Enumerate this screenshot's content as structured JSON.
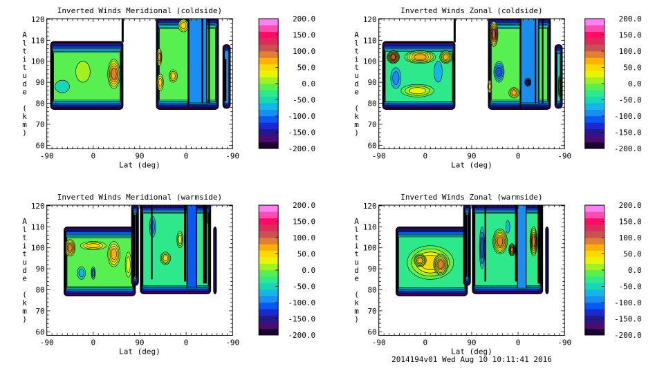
{
  "footer": "2014194v01 Wed Aug 10 10:11:41 2016",
  "axes": {
    "xlabel": "Lat (deg)",
    "ylabel": "Altitude (km)",
    "xticks": [
      "-90",
      "0",
      "90",
      "0",
      "-90"
    ],
    "yticks": [
      "60",
      "70",
      "80",
      "90",
      "100",
      "110",
      "120"
    ],
    "colorbar_labels": [
      "200.0",
      "150.0",
      "100.0",
      "50.0",
      "0.0",
      "-50.0",
      "-100.0",
      "-150.0",
      "-200.0"
    ]
  },
  "colors": {
    "scale": [
      "#1c0030",
      "#4a0c70",
      "#24188c",
      "#1a2ad0",
      "#0a58f2",
      "#1a8ef0",
      "#12b6e8",
      "#18d6b8",
      "#2ee88c",
      "#58f050",
      "#a2f022",
      "#e8f400",
      "#ffd800",
      "#ffb000",
      "#e07e32",
      "#c85252",
      "#dc2c5c",
      "#ff0c64",
      "#ff4cb0",
      "#ff80f0"
    ],
    "line": "#000000"
  },
  "chart_data": [
    {
      "type": "contour",
      "title": "Inverted Winds Meridional (coldside)",
      "xlabel": "Lat (deg)",
      "ylabel": "Altitude (km)",
      "ylim": [
        60,
        120
      ],
      "zlim": [
        -200,
        200
      ],
      "zstep": 20,
      "segments": [
        {
          "x": [
            7,
            148
          ],
          "alt": [
            77,
            109.5
          ],
          "base": -20,
          "blobs": [
            {
              "x": 130,
              "alt": 94,
              "rx": 12,
              "ry": 7,
              "level": 80
            },
            {
              "x": 70,
              "alt": 95,
              "rx": 14,
              "ry": 5,
              "level": 0
            },
            {
              "x": 30,
              "alt": 88,
              "rx": 14,
              "ry": 3,
              "level": -40
            }
          ],
          "bars": [
            [
              8,
              12,
              82,
              105
            ]
          ]
        },
        {
          "x": [
            212,
            333
          ],
          "alt": [
            77,
            121
          ],
          "base": -20,
          "strips": [
            {
              "x": [
                274,
                311
              ],
              "alt": [
                79,
                121
              ],
              "level": -80
            }
          ],
          "blobs": [
            {
              "x": 218,
              "alt": 102,
              "rx": 5,
              "ry": 4,
              "level": 60
            },
            {
              "x": 245,
              "alt": 93,
              "rx": 8,
              "ry": 3,
              "level": 40
            },
            {
              "x": 265,
              "alt": 117,
              "rx": 10,
              "ry": 3,
              "level": 40
            },
            {
              "x": 220,
              "alt": 90,
              "rx": 6,
              "ry": 4,
              "level": 40
            }
          ],
          "bars": [
            [
              273,
              276,
              78,
              121
            ],
            [
              300,
              303,
              80,
              121
            ],
            [
              313,
              316,
              80,
              121
            ]
          ]
        },
        {
          "x": [
            341,
            356
          ],
          "alt": [
            77.5,
            108
          ],
          "base": -100,
          "bars": [
            [
              344,
              348,
              81,
              101
            ]
          ]
        }
      ],
      "lines": [
        [
          147,
          109,
          121
        ]
      ]
    },
    {
      "type": "contour",
      "title": "Inverted Winds Zonal (coldside)",
      "xlabel": "Lat (deg)",
      "ylabel": "Altitude (km)",
      "ylim": [
        60,
        120
      ],
      "zlim": [
        -200,
        200
      ],
      "zstep": 20,
      "segments": [
        {
          "x": [
            7,
            148
          ],
          "alt": [
            77,
            109.5
          ],
          "base": -40,
          "blobs": [
            {
              "x": 28,
              "alt": 102,
              "rx": 12,
              "ry": 3,
              "level": 100
            },
            {
              "x": 80,
              "alt": 102,
              "rx": 30,
              "ry": 3,
              "level": 60
            },
            {
              "x": 130,
              "alt": 102,
              "rx": 12,
              "ry": 3,
              "level": 60
            },
            {
              "x": 33,
              "alt": 92,
              "rx": 10,
              "ry": 5,
              "level": -80
            },
            {
              "x": 115,
              "alt": 95,
              "rx": 8,
              "ry": 5,
              "level": -60
            },
            {
              "x": 75,
              "alt": 86,
              "rx": 32,
              "ry": 3,
              "level": 20
            }
          ],
          "bars": [
            [
              8,
              12,
              84,
              104
            ]
          ]
        },
        {
          "x": [
            212,
            333
          ],
          "alt": [
            77,
            121
          ],
          "base": -20,
          "strips": [
            {
              "x": [
                274,
                311
              ],
              "alt": [
                79,
                121
              ],
              "level": -80
            }
          ],
          "blobs": [
            {
              "x": 223,
              "alt": 113,
              "rx": 8,
              "ry": 6,
              "level": 100
            },
            {
              "x": 233,
              "alt": 95,
              "rx": 10,
              "ry": 5,
              "level": -100
            },
            {
              "x": 262,
              "alt": 85,
              "rx": 10,
              "ry": 2.5,
              "level": 60
            },
            {
              "x": 215,
              "alt": 88,
              "rx": 4,
              "ry": 3,
              "level": 40
            },
            {
              "x": 289,
              "alt": 90,
              "rx": 6,
              "ry": 2,
              "level": -140
            }
          ],
          "bars": [
            [
              273,
              276,
              78,
              121
            ],
            [
              302,
              305,
              80,
              121
            ],
            [
              316,
              319,
              80,
              121
            ]
          ]
        },
        {
          "x": [
            341,
            356
          ],
          "alt": [
            77.5,
            108
          ],
          "base": -60,
          "blobs": [
            {
              "x": 350,
              "alt": 88,
              "rx": 2,
              "ry": 5,
              "level": 40
            }
          ],
          "bars": [
            [
              342,
              346,
              81,
              97
            ]
          ]
        }
      ],
      "lines": [
        [
          147,
          109,
          121
        ]
      ]
    },
    {
      "type": "contour",
      "title": "Inverted Winds Meridional (warmside)",
      "xlabel": "Lat (deg)",
      "ylabel": "Altitude (km)",
      "ylim": [
        60,
        120
      ],
      "zlim": [
        -200,
        200
      ],
      "zstep": 20,
      "segments": [
        {
          "x": [
            33,
            172
          ],
          "alt": [
            77,
            110
          ],
          "base": -20,
          "blobs": [
            {
              "x": 45,
              "alt": 100,
              "rx": 10,
              "ry": 4,
              "level": 80
            },
            {
              "x": 130,
              "alt": 97,
              "rx": 12,
              "ry": 6,
              "level": 60
            },
            {
              "x": 90,
              "alt": 101,
              "rx": 25,
              "ry": 2,
              "level": 40
            },
            {
              "x": 67,
              "alt": 88,
              "rx": 8,
              "ry": 3,
              "level": -60
            },
            {
              "x": 90,
              "alt": 88,
              "rx": 4,
              "ry": 3,
              "level": -80
            },
            {
              "x": 158,
              "alt": 92,
              "rx": 6,
              "ry": 6,
              "level": 20
            }
          ],
          "bars": [
            [
              33,
              37,
              79,
              108
            ]
          ]
        },
        {
          "x": [
            164,
            178
          ],
          "alt": [
            82,
            121
          ],
          "base": -20
        },
        {
          "x": [
            181,
            318
          ],
          "alt": [
            78,
            121
          ],
          "base": -40,
          "strips": [
            {
              "x": [
                271,
                291
              ],
              "alt": [
                80,
                121
              ],
              "level": -100
            }
          ],
          "blobs": [
            {
              "x": 230,
              "alt": 95,
              "rx": 10,
              "ry": 3,
              "level": 40
            },
            {
              "x": 205,
              "alt": 110,
              "rx": 6,
              "ry": 5,
              "level": -80
            },
            {
              "x": 258,
              "alt": 104,
              "rx": 6,
              "ry": 4,
              "level": 20
            },
            {
              "x": 308,
              "alt": 115,
              "rx": 5,
              "ry": 4,
              "level": 40
            }
          ],
          "bars": [
            [
              181,
              186,
              86,
              121
            ],
            [
              202,
              205,
              85,
              121
            ],
            [
              266,
              270,
              84,
              121
            ],
            [
              303,
              310,
              83,
              121
            ]
          ]
        },
        {
          "x": [
            323,
            329
          ],
          "alt": [
            78,
            110
          ],
          "base": -140
        }
      ]
    },
    {
      "type": "contour",
      "title": "Inverted Winds Zonal (warmside)",
      "xlabel": "Lat (deg)",
      "ylabel": "Altitude (km)",
      "ylim": [
        60,
        120
      ],
      "zlim": [
        -200,
        200
      ],
      "zstep": 20,
      "segments": [
        {
          "x": [
            33,
            172
          ],
          "alt": [
            77,
            110
          ],
          "base": -40,
          "blobs": [
            {
              "x": 100,
              "alt": 93,
              "rx": 45,
              "ry": 8,
              "level": 40
            },
            {
              "x": 120,
              "alt": 92,
              "rx": 14,
              "ry": 5,
              "level": 80
            },
            {
              "x": 80,
              "alt": 94,
              "rx": 12,
              "ry": 3,
              "level": 60
            }
          ],
          "bars": [
            [
              33,
              37,
              79,
              108
            ]
          ]
        },
        {
          "x": [
            164,
            178
          ],
          "alt": [
            82,
            121
          ],
          "base": -20
        },
        {
          "x": [
            181,
            318
          ],
          "alt": [
            78,
            121
          ],
          "base": -40,
          "strips": [
            {
              "x": [
                268,
                286
              ],
              "alt": [
                80,
                121
              ],
              "level": -80
            }
          ],
          "blobs": [
            {
              "x": 235,
              "alt": 103,
              "rx": 14,
              "ry": 6,
              "level": 80
            },
            {
              "x": 258,
              "alt": 99,
              "rx": 6,
              "ry": 3,
              "level": 80
            },
            {
              "x": 300,
              "alt": 103,
              "rx": 7,
              "ry": 7,
              "level": 80
            },
            {
              "x": 200,
              "alt": 100,
              "rx": 5,
              "ry": 10,
              "level": -100
            },
            {
              "x": 250,
              "alt": 110,
              "rx": 4,
              "ry": 3,
              "level": -60
            }
          ],
          "bars": [
            [
              181,
              186,
              83,
              121
            ],
            [
              205,
              208,
              84,
              121
            ],
            [
              264,
              268,
              84,
              121
            ],
            [
              308,
              315,
              83,
              121
            ]
          ]
        },
        {
          "x": [
            323,
            329
          ],
          "alt": [
            78,
            110
          ],
          "base": -140
        }
      ]
    }
  ]
}
